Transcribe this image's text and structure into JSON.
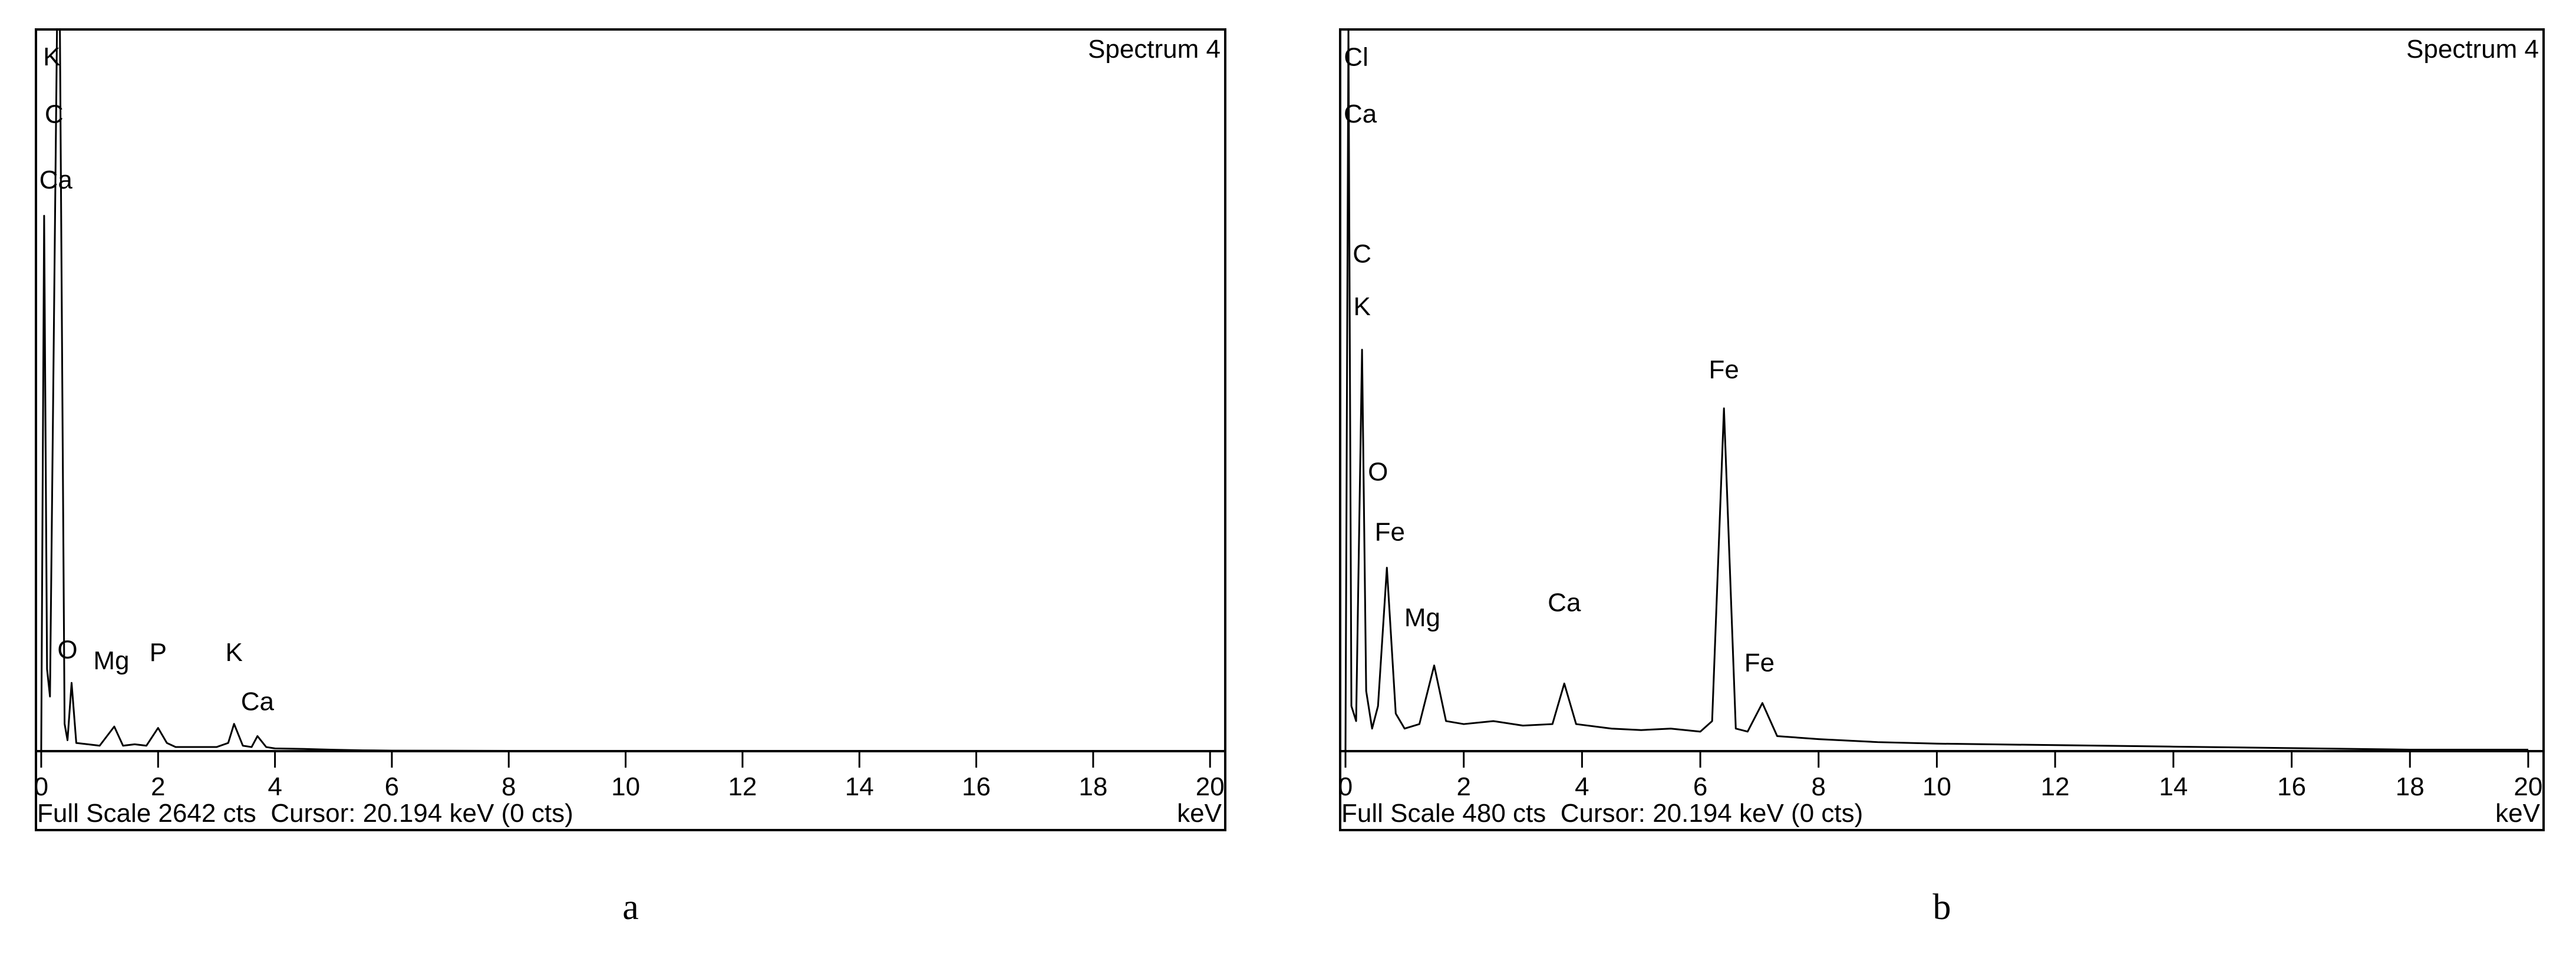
{
  "chart_data": [
    {
      "type": "line",
      "title": "Spectrum 4",
      "x": [
        0,
        0.05,
        0.1,
        0.15,
        0.2,
        0.27,
        0.32,
        0.4,
        0.45,
        0.52,
        0.6,
        0.8,
        1.0,
        1.25,
        1.4,
        1.6,
        1.8,
        2.0,
        2.15,
        2.3,
        2.6,
        3.0,
        3.2,
        3.3,
        3.45,
        3.6,
        3.7,
        3.85,
        4.0,
        4.5,
        5.0,
        5.5,
        6,
        8,
        10,
        12,
        14,
        16,
        18,
        20
      ],
      "series": [
        {
          "color": "#000000",
          "values": [
            0,
            1960,
            300,
            200,
            1200,
            2642,
            2642,
            100,
            40,
            250,
            30,
            25,
            20,
            90,
            20,
            25,
            20,
            85,
            30,
            15,
            15,
            15,
            30,
            100,
            20,
            15,
            55,
            15,
            10,
            8,
            5,
            3,
            2,
            1,
            1,
            0,
            0,
            0,
            0,
            0
          ]
        }
      ],
      "xlim": [
        -0.09,
        20.26
      ],
      "ylim": [
        0,
        2642
      ],
      "xticks": [
        0,
        2,
        4,
        6,
        8,
        10,
        12,
        14,
        16,
        18,
        20
      ],
      "annotations": [
        {
          "text": "K",
          "x": 0.18,
          "y": 2510
        },
        {
          "text": "C",
          "x": 0.22,
          "y": 2300
        },
        {
          "text": "Ca",
          "x": 0.25,
          "y": 2060
        },
        {
          "text": "O",
          "x": 0.45,
          "y": 340
        },
        {
          "text": "Mg",
          "x": 1.2,
          "y": 300
        },
        {
          "text": "P",
          "x": 2.0,
          "y": 330
        },
        {
          "text": "K",
          "x": 3.3,
          "y": 330
        },
        {
          "text": "Ca",
          "x": 3.7,
          "y": 150
        }
      ],
      "footer": "Full Scale 2642 cts  Cursor: 20.194 keV (0 cts)",
      "xlabel": "keV",
      "caption": "a"
    },
    {
      "type": "line",
      "title": "Spectrum 4",
      "x": [
        0,
        0.05,
        0.1,
        0.18,
        0.28,
        0.35,
        0.45,
        0.55,
        0.7,
        0.85,
        1.0,
        1.25,
        1.5,
        1.7,
        2.0,
        2.5,
        3.0,
        3.5,
        3.7,
        3.9,
        4.5,
        5.0,
        5.5,
        6.0,
        6.2,
        6.4,
        6.6,
        6.8,
        7.05,
        7.3,
        8,
        9,
        10,
        12,
        14,
        16,
        18,
        20
      ],
      "series": [
        {
          "color": "#000000",
          "values": [
            0,
            480,
            30,
            20,
            267,
            40,
            15,
            30,
            122,
            25,
            15,
            18,
            57,
            20,
            18,
            20,
            17,
            18,
            45,
            18,
            15,
            14,
            15,
            13,
            20,
            228,
            15,
            13,
            32,
            10,
            8,
            6,
            5,
            4,
            3,
            2,
            1,
            1
          ]
        }
      ],
      "xlim": [
        -0.09,
        20.26
      ],
      "ylim": [
        0,
        480
      ],
      "xticks": [
        0,
        2,
        4,
        6,
        8,
        10,
        12,
        14,
        16,
        18,
        20
      ],
      "annotations": [
        {
          "text": "Cl",
          "x": 0.18,
          "y": 456
        },
        {
          "text": "Ca",
          "x": 0.25,
          "y": 418
        },
        {
          "text": "C",
          "x": 0.28,
          "y": 325
        },
        {
          "text": "K",
          "x": 0.28,
          "y": 290
        },
        {
          "text": "O",
          "x": 0.55,
          "y": 180
        },
        {
          "text": "Fe",
          "x": 0.75,
          "y": 140
        },
        {
          "text": "Mg",
          "x": 1.3,
          "y": 83
        },
        {
          "text": "Ca",
          "x": 3.7,
          "y": 93
        },
        {
          "text": "Fe",
          "x": 6.4,
          "y": 248
        },
        {
          "text": "Fe",
          "x": 7.0,
          "y": 53
        }
      ],
      "footer": "Full Scale 480 cts  Cursor: 20.194 keV (0 cts)",
      "xlabel": "keV",
      "caption": "b"
    }
  ]
}
